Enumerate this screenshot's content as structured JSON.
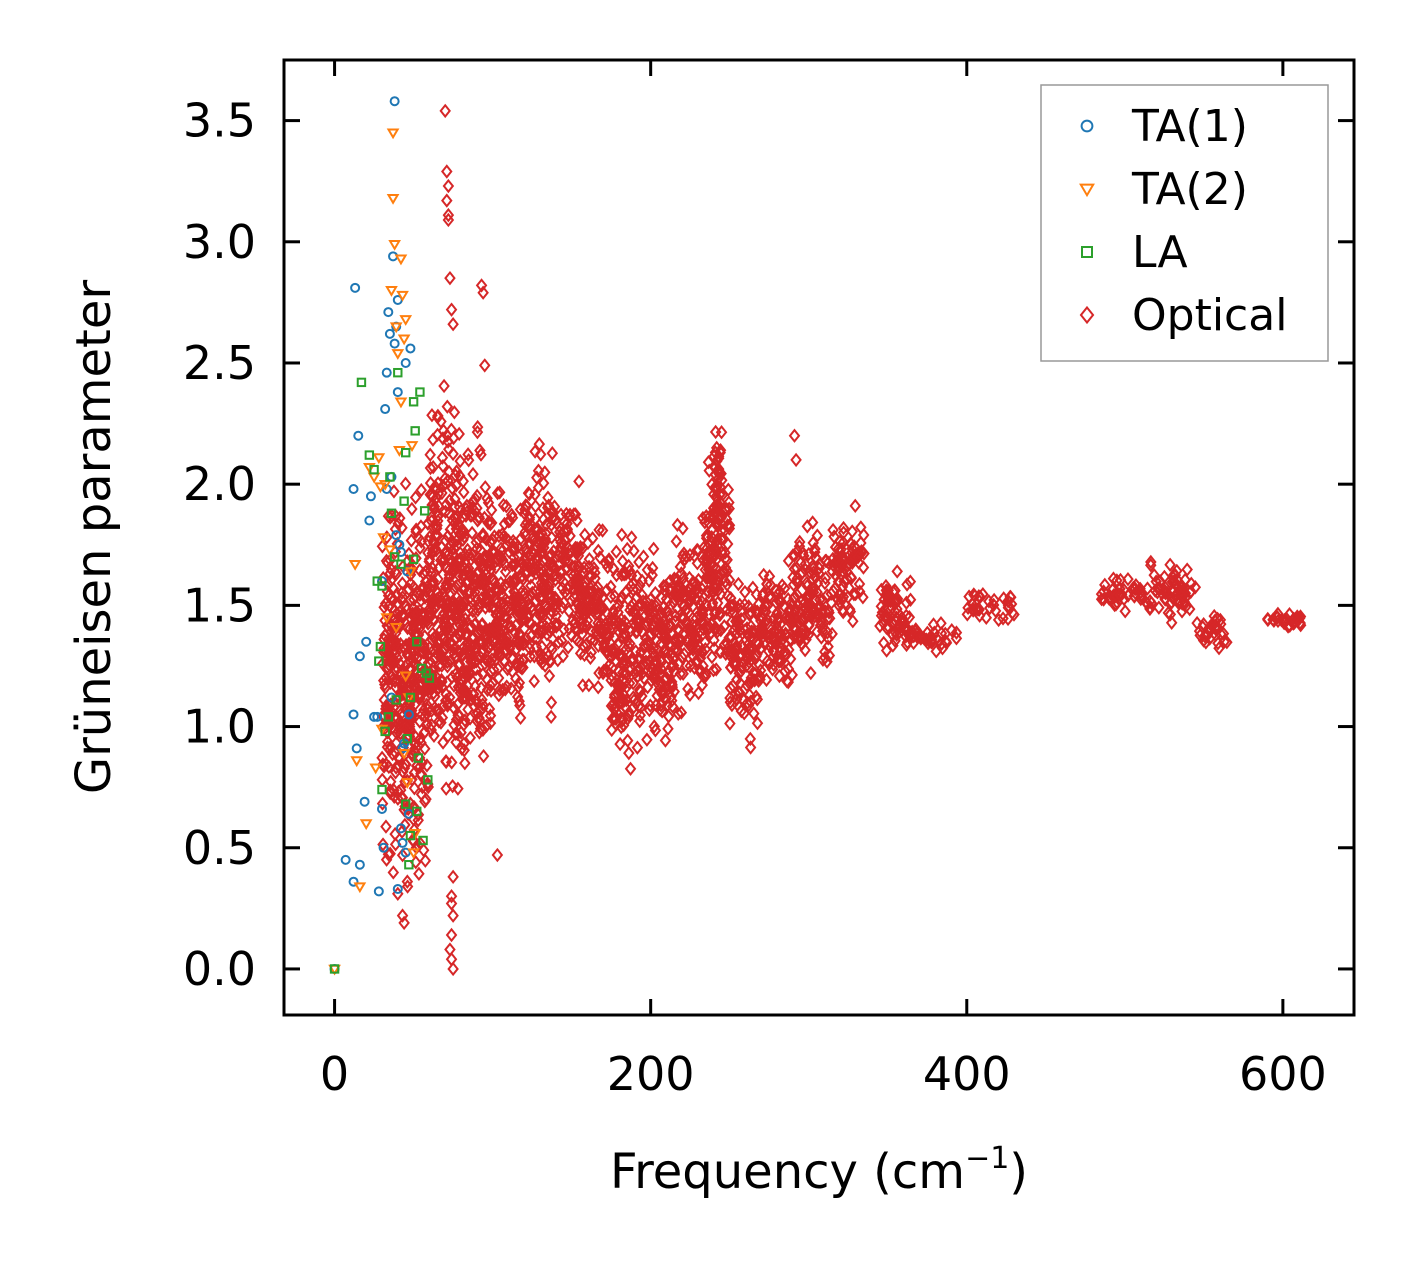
{
  "chart_data": {
    "type": "scatter",
    "xlabel": "Frequency (cm",
    "xlabel_superscript": "−1",
    "xlabel_suffix": ")",
    "ylabel": "Grüneisen parameter",
    "xlim": [
      -32,
      645
    ],
    "ylim": [
      -0.19,
      3.75
    ],
    "xticks": [
      0,
      200,
      400,
      600
    ],
    "xtick_labels": [
      "0",
      "200",
      "400",
      "600"
    ],
    "yticks": [
      0.0,
      0.5,
      1.0,
      1.5,
      2.0,
      2.5,
      3.0,
      3.5
    ],
    "ytick_labels": [
      "0.0",
      "0.5",
      "1.0",
      "1.5",
      "2.0",
      "2.5",
      "3.0",
      "3.5"
    ],
    "legend_position": "top-right",
    "series": [
      {
        "name": "TA(1)",
        "marker": "circle",
        "color": "#1f77b4",
        "points": [
          [
            0,
            0.0
          ],
          [
            7,
            0.45
          ],
          [
            12,
            0.36
          ],
          [
            16,
            0.43
          ],
          [
            12,
            1.98
          ],
          [
            13,
            2.81
          ],
          [
            15,
            2.2
          ],
          [
            14,
            0.91
          ],
          [
            12,
            1.05
          ],
          [
            16,
            1.29
          ],
          [
            20,
            1.35
          ],
          [
            19,
            0.69
          ],
          [
            22,
            1.85
          ],
          [
            23,
            1.95
          ],
          [
            25,
            1.04
          ],
          [
            27,
            1.04
          ],
          [
            28,
            0.32
          ],
          [
            30,
            0.66
          ],
          [
            30,
            1.6
          ],
          [
            32,
            2.31
          ],
          [
            33,
            2.46
          ],
          [
            34,
            2.71
          ],
          [
            35,
            2.62
          ],
          [
            36,
            2.03
          ],
          [
            36,
            1.12
          ],
          [
            37,
            2.94
          ],
          [
            38,
            2.58
          ],
          [
            39,
            2.65
          ],
          [
            40,
            2.76
          ],
          [
            40,
            2.38
          ],
          [
            41,
            1.75
          ],
          [
            42,
            1.72
          ],
          [
            42,
            0.58
          ],
          [
            43,
            0.52
          ],
          [
            44,
            0.93
          ],
          [
            45,
            2.5
          ],
          [
            46,
            1.64
          ],
          [
            47,
            1.05
          ],
          [
            47,
            0.64
          ],
          [
            48,
            2.56
          ],
          [
            38,
            3.58
          ],
          [
            39,
            1.79
          ],
          [
            40,
            0.33
          ],
          [
            33,
            1.98
          ],
          [
            31,
            0.5
          ],
          [
            43,
            0.91
          ],
          [
            45,
            0.48
          ]
        ]
      },
      {
        "name": "TA(2)",
        "marker": "triangle",
        "color": "#ff7f0e",
        "points": [
          [
            0,
            0.0
          ],
          [
            13,
            1.67
          ],
          [
            14,
            0.86
          ],
          [
            16,
            0.34
          ],
          [
            20,
            0.6
          ],
          [
            22,
            2.07
          ],
          [
            25,
            2.03
          ],
          [
            26,
            0.83
          ],
          [
            28,
            2.11
          ],
          [
            29,
            1.99
          ],
          [
            30,
            0.99
          ],
          [
            31,
            1.78
          ],
          [
            32,
            2.0
          ],
          [
            33,
            1.45
          ],
          [
            35,
            1.73
          ],
          [
            36,
            2.8
          ],
          [
            37,
            3.45
          ],
          [
            37,
            3.18
          ],
          [
            38,
            2.99
          ],
          [
            39,
            2.65
          ],
          [
            40,
            2.54
          ],
          [
            41,
            2.14
          ],
          [
            42,
            2.34
          ],
          [
            43,
            2.78
          ],
          [
            44,
            2.6
          ],
          [
            45,
            1.21
          ],
          [
            46,
            0.77
          ],
          [
            47,
            1.12
          ],
          [
            48,
            1.64
          ],
          [
            49,
            2.16
          ],
          [
            50,
            0.48
          ],
          [
            51,
            0.56
          ],
          [
            42,
            2.93
          ],
          [
            44,
            0.89
          ],
          [
            39,
            1.41
          ],
          [
            45,
            2.68
          ]
        ]
      },
      {
        "name": "LA",
        "marker": "square",
        "color": "#2ca02c",
        "points": [
          [
            0,
            0.0
          ],
          [
            17,
            2.42
          ],
          [
            22,
            2.12
          ],
          [
            25,
            2.06
          ],
          [
            27,
            1.6
          ],
          [
            28,
            1.27
          ],
          [
            29,
            1.33
          ],
          [
            30,
            1.58
          ],
          [
            30,
            0.74
          ],
          [
            32,
            0.98
          ],
          [
            34,
            1.04
          ],
          [
            35,
            2.03
          ],
          [
            36,
            1.88
          ],
          [
            38,
            1.7
          ],
          [
            39,
            1.11
          ],
          [
            40,
            2.46
          ],
          [
            42,
            1.67
          ],
          [
            44,
            1.93
          ],
          [
            45,
            2.13
          ],
          [
            46,
            0.95
          ],
          [
            47,
            0.43
          ],
          [
            48,
            0.55
          ],
          [
            50,
            1.69
          ],
          [
            51,
            2.22
          ],
          [
            52,
            1.35
          ],
          [
            53,
            0.87
          ],
          [
            54,
            2.38
          ],
          [
            55,
            1.24
          ],
          [
            56,
            0.53
          ],
          [
            57,
            1.89
          ],
          [
            58,
            1.22
          ],
          [
            59,
            0.78
          ],
          [
            50,
            2.34
          ],
          [
            48,
            1.12
          ],
          [
            45,
            0.68
          ],
          [
            52,
            0.65
          ],
          [
            60,
            1.2
          ]
        ]
      },
      {
        "name": "Optical",
        "marker": "diamond",
        "color": "#d62728",
        "density_points": 3000,
        "segments": [
          [
            30,
            60,
            0.2,
            2.2
          ],
          [
            60,
            80,
            0.45,
            2.55
          ],
          [
            80,
            100,
            0.6,
            2.35
          ],
          [
            100,
            120,
            0.85,
            2.15
          ],
          [
            120,
            140,
            0.95,
            2.3
          ],
          [
            140,
            155,
            1.15,
            2.1
          ],
          [
            155,
            175,
            1.05,
            1.9
          ],
          [
            175,
            195,
            0.75,
            1.95
          ],
          [
            195,
            215,
            0.8,
            1.8
          ],
          [
            215,
            235,
            0.95,
            1.95
          ],
          [
            235,
            250,
            1.05,
            2.3
          ],
          [
            240,
            245,
            1.6,
            2.4
          ],
          [
            250,
            270,
            0.85,
            1.75
          ],
          [
            270,
            290,
            1.05,
            1.75
          ],
          [
            290,
            315,
            1.15,
            1.9
          ],
          [
            315,
            335,
            1.35,
            1.95
          ],
          [
            345,
            365,
            1.2,
            1.7
          ],
          [
            365,
            395,
            1.3,
            1.45
          ],
          [
            400,
            430,
            1.42,
            1.58
          ],
          [
            485,
            515,
            1.45,
            1.65
          ],
          [
            515,
            545,
            1.4,
            1.7
          ],
          [
            545,
            565,
            1.3,
            1.5
          ],
          [
            590,
            612,
            1.38,
            1.5
          ]
        ],
        "outliers": [
          [
            70,
            3.54
          ],
          [
            71,
            3.29
          ],
          [
            72,
            3.23
          ],
          [
            71,
            3.17
          ],
          [
            72,
            3.11
          ],
          [
            72,
            3.09
          ],
          [
            73,
            2.85
          ],
          [
            74,
            2.72
          ],
          [
            75,
            2.66
          ],
          [
            93,
            2.82
          ],
          [
            94,
            2.79
          ],
          [
            95,
            2.49
          ],
          [
            75,
            0.38
          ],
          [
            74,
            0.27
          ],
          [
            75,
            0.22
          ],
          [
            74,
            0.14
          ],
          [
            73,
            0.08
          ],
          [
            74,
            0.04
          ],
          [
            75,
            0.0
          ],
          [
            74,
            0.3
          ],
          [
            103,
            0.47
          ],
          [
            291,
            2.2
          ],
          [
            292,
            2.1
          ],
          [
            244,
            1.47
          ],
          [
            44,
            0.19
          ],
          [
            43,
            0.22
          ],
          [
            40,
            0.31
          ]
        ]
      }
    ]
  }
}
